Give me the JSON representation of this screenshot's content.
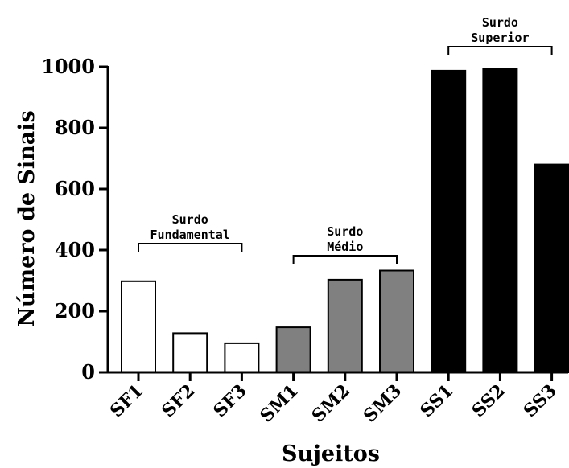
{
  "chart_data": {
    "type": "bar",
    "categories": [
      "SF1",
      "SF2",
      "SF3",
      "SM1",
      "SM2",
      "SM3",
      "SS1",
      "SS2",
      "SS3"
    ],
    "values": [
      298,
      128,
      95,
      147,
      303,
      333,
      987,
      992,
      680
    ],
    "bar_colors": [
      "#ffffff",
      "#ffffff",
      "#ffffff",
      "#808080",
      "#808080",
      "#808080",
      "#000000",
      "#000000",
      "#000000"
    ],
    "xlabel": "Sujeitos",
    "ylabel": "Número de Sinais",
    "ylim": [
      0,
      1000
    ],
    "yticks": [
      0,
      200,
      400,
      600,
      800,
      1000
    ],
    "groups": [
      {
        "lines": [
          "Surdo",
          "Fundamental"
        ],
        "from": "SF1",
        "to": "SF3"
      },
      {
        "lines": [
          "Surdo",
          "Médio"
        ],
        "from": "SM1",
        "to": "SM3"
      },
      {
        "lines": [
          "Surdo",
          "Superior"
        ],
        "from": "SS1",
        "to": "SS3"
      }
    ],
    "grid": false,
    "legend": "none"
  }
}
